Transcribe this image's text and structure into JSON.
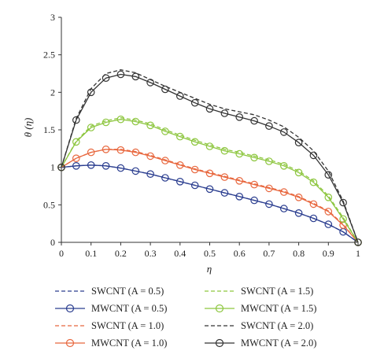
{
  "chart_data": {
    "type": "line",
    "xlabel": "η",
    "ylabel": "θ (η)",
    "xlim": [
      0,
      1
    ],
    "ylim": [
      0,
      3
    ],
    "xticks": [
      "0",
      "0.1",
      "0.2",
      "0.3",
      "0.4",
      "0.5",
      "0.6",
      "0.7",
      "0.8",
      "0.9",
      "1"
    ],
    "yticks": [
      "0",
      "0.5",
      "1",
      "1.5",
      "2",
      "2.5",
      "3"
    ],
    "grid": false,
    "legend_position": "bottom",
    "x": [
      0,
      0.05,
      0.1,
      0.15,
      0.2,
      0.25,
      0.3,
      0.35,
      0.4,
      0.45,
      0.5,
      0.55,
      0.6,
      0.65,
      0.7,
      0.75,
      0.8,
      0.85,
      0.9,
      0.95,
      1.0
    ],
    "series": [
      {
        "name": "SWCNT (A = 0.5)",
        "color": "#2a3d8f",
        "style": "dashed",
        "marker": "none",
        "values": [
          1.0,
          1.02,
          1.03,
          1.02,
          0.99,
          0.95,
          0.91,
          0.86,
          0.81,
          0.76,
          0.71,
          0.66,
          0.61,
          0.56,
          0.51,
          0.45,
          0.39,
          0.32,
          0.24,
          0.14,
          0.0
        ]
      },
      {
        "name": "MWCNT (A = 0.5)",
        "color": "#2a3d8f",
        "style": "solid",
        "marker": "circle",
        "values": [
          1.0,
          1.02,
          1.03,
          1.02,
          0.99,
          0.95,
          0.91,
          0.86,
          0.81,
          0.76,
          0.71,
          0.66,
          0.61,
          0.56,
          0.51,
          0.45,
          0.39,
          0.32,
          0.24,
          0.14,
          0.0
        ]
      },
      {
        "name": "SWCNT (A = 1.0)",
        "color": "#e8683f",
        "style": "dashed",
        "marker": "none",
        "values": [
          1.0,
          1.12,
          1.2,
          1.24,
          1.24,
          1.21,
          1.16,
          1.1,
          1.04,
          0.98,
          0.93,
          0.88,
          0.83,
          0.78,
          0.73,
          0.68,
          0.61,
          0.52,
          0.42,
          0.24,
          0.0
        ]
      },
      {
        "name": "MWCNT (A = 1.0)",
        "color": "#e8683f",
        "style": "solid",
        "marker": "circle",
        "values": [
          1.0,
          1.12,
          1.2,
          1.24,
          1.23,
          1.2,
          1.15,
          1.09,
          1.03,
          0.97,
          0.92,
          0.87,
          0.82,
          0.77,
          0.72,
          0.67,
          0.6,
          0.51,
          0.41,
          0.23,
          0.0
        ]
      },
      {
        "name": "SWCNT (A = 1.5)",
        "color": "#8dc63f",
        "style": "dashed",
        "marker": "none",
        "values": [
          1.0,
          1.35,
          1.55,
          1.62,
          1.66,
          1.63,
          1.58,
          1.5,
          1.43,
          1.36,
          1.3,
          1.24,
          1.2,
          1.15,
          1.1,
          1.04,
          0.95,
          0.82,
          0.62,
          0.33,
          0.0
        ]
      },
      {
        "name": "MWCNT (A = 1.5)",
        "color": "#8dc63f",
        "style": "solid",
        "marker": "circle",
        "values": [
          1.0,
          1.34,
          1.53,
          1.6,
          1.64,
          1.61,
          1.56,
          1.48,
          1.41,
          1.34,
          1.28,
          1.22,
          1.18,
          1.13,
          1.08,
          1.02,
          0.93,
          0.8,
          0.6,
          0.31,
          0.0
        ]
      },
      {
        "name": "SWCNT (A = 2.0)",
        "color": "#333333",
        "style": "dashed",
        "marker": "none",
        "values": [
          1.0,
          1.65,
          2.05,
          2.25,
          2.3,
          2.26,
          2.17,
          2.08,
          2.0,
          1.92,
          1.84,
          1.78,
          1.74,
          1.7,
          1.63,
          1.54,
          1.4,
          1.22,
          0.95,
          0.55,
          0.0
        ]
      },
      {
        "name": "MWCNT (A = 2.0)",
        "color": "#333333",
        "style": "solid",
        "marker": "circle",
        "values": [
          1.0,
          1.63,
          2.0,
          2.19,
          2.24,
          2.21,
          2.13,
          2.04,
          1.95,
          1.86,
          1.78,
          1.72,
          1.67,
          1.62,
          1.55,
          1.47,
          1.33,
          1.16,
          0.9,
          0.53,
          0.0
        ]
      }
    ]
  }
}
